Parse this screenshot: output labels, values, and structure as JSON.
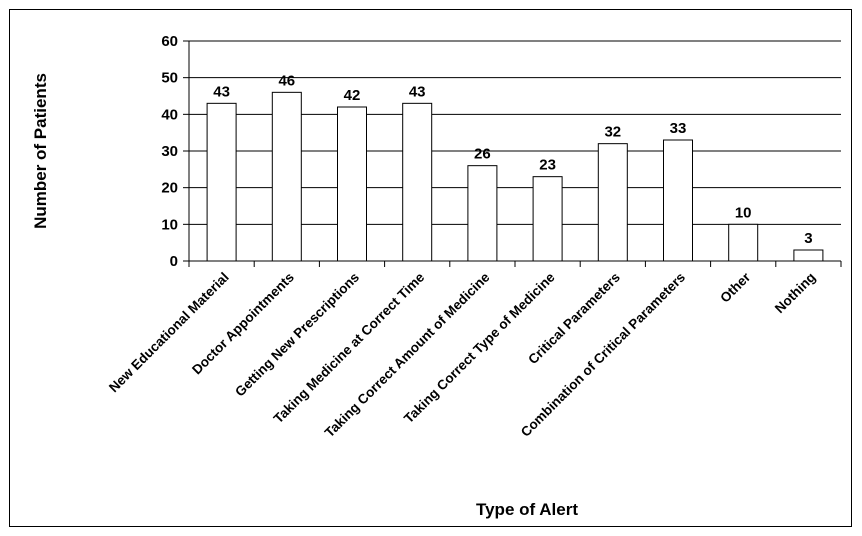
{
  "chart_data": {
    "type": "bar",
    "title": "",
    "xlabel": "Type of Alert",
    "ylabel": "Number of Patients",
    "ylim": [
      0,
      60
    ],
    "yticks": [
      0,
      10,
      20,
      30,
      40,
      50,
      60
    ],
    "grid": true,
    "legend": "none",
    "categories": [
      "New Educational Material",
      "Doctor Appointments",
      "Getting New Prescriptions",
      "Taking Medicine at Correct Time",
      "Taking Correct Amount of Medicine",
      "Taking Correct Type of Medicine",
      "Critical Parameters",
      "Combination of Critical Parameters",
      "Other",
      "Nothing"
    ],
    "values": [
      43,
      46,
      42,
      43,
      26,
      23,
      32,
      33,
      10,
      3
    ],
    "colors": {
      "bar_fill": "#ffffff",
      "bar_stroke": "#000000",
      "grid": "#000000"
    }
  }
}
